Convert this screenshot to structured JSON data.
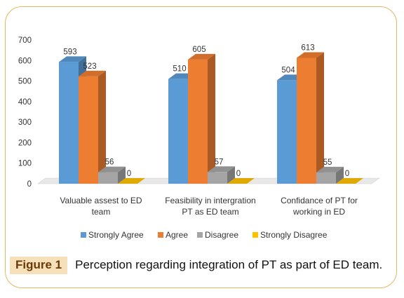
{
  "chart_data": {
    "type": "bar",
    "style": "3d-clustered",
    "categories": [
      "Valuable assest to ED team",
      "Feasibility in intergration PT as ED team",
      "Confidance of PT for working in ED"
    ],
    "category_lines": [
      [
        "Valuable assest to ED",
        "team"
      ],
      [
        "Feasibility in intergration",
        "PT as ED team"
      ],
      [
        "Confidance of PT for",
        "working in ED"
      ]
    ],
    "series": [
      {
        "name": "Strongly Agree",
        "values": [
          593,
          510,
          504
        ],
        "color": "#5b9bd5"
      },
      {
        "name": "Agree",
        "values": [
          523,
          605,
          613
        ],
        "color": "#ed7d31"
      },
      {
        "name": "Disagree",
        "values": [
          56,
          57,
          55
        ],
        "color": "#a5a5a5"
      },
      {
        "name": "Strongly Disagree",
        "values": [
          0,
          0,
          0
        ],
        "color": "#ffc000"
      }
    ],
    "ylim": [
      0,
      700
    ],
    "yticks": [
      0,
      100,
      200,
      300,
      400,
      500,
      600,
      700
    ],
    "grid": false,
    "legend_position": "bottom"
  },
  "caption": {
    "label": "Figure 1",
    "text": "Perception regarding integration of PT as part of ED team."
  }
}
